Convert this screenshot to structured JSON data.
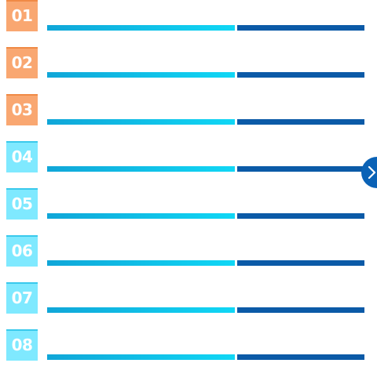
{
  "rows": [
    {
      "number": "01",
      "color": "orange"
    },
    {
      "number": "02",
      "color": "orange"
    },
    {
      "number": "03",
      "color": "orange"
    },
    {
      "number": "04",
      "color": "cyan"
    },
    {
      "number": "05",
      "color": "cyan"
    },
    {
      "number": "06",
      "color": "cyan"
    },
    {
      "number": "07",
      "color": "cyan"
    },
    {
      "number": "08",
      "color": "cyan"
    }
  ],
  "colors": {
    "orange_badge": "#f9a771",
    "cyan_badge": "#7fe9ff",
    "bar_gradient_start": "#10a6d8",
    "bar_gradient_end": "#10d7f5",
    "bar_dark": "#0b5aa7",
    "next_button": "#0a62b6"
  },
  "controls": {
    "next_icon": "chevron-right-icon"
  }
}
